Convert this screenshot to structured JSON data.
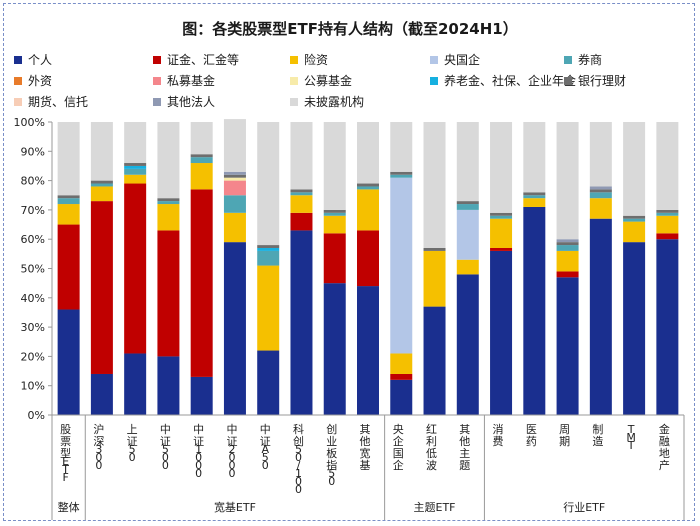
{
  "chart_data": {
    "type": "bar",
    "stacked": true,
    "title": "图：各类股票型ETF持有人结构（截至2024H1）",
    "ylim": [
      0,
      100
    ],
    "yticks": [
      "0%",
      "10%",
      "20%",
      "30%",
      "40%",
      "50%",
      "60%",
      "70%",
      "80%",
      "90%",
      "100%"
    ],
    "categories": [
      "股票型ETF",
      "沪深300",
      "上证50",
      "中证500",
      "中证1000",
      "中证2000",
      "中证A50",
      "科创50/100",
      "创业板指50",
      "其他宽基",
      "央企国企",
      "红利低波",
      "其他主题",
      "消费",
      "医药",
      "周期",
      "制造",
      "TMT",
      "金融地产"
    ],
    "groups": [
      {
        "name": "整体",
        "categories": [
          "股票型ETF"
        ]
      },
      {
        "name": "宽基ETF",
        "categories": [
          "沪深300",
          "上证50",
          "中证500",
          "中证1000",
          "中证2000",
          "中证A50",
          "科创50/100",
          "创业板指50",
          "其他宽基"
        ]
      },
      {
        "name": "主题ETF",
        "categories": [
          "央企国企",
          "红利低波",
          "其他主题"
        ]
      },
      {
        "name": "行业ETF",
        "categories": [
          "消费",
          "医药",
          "周期",
          "制造",
          "TMT",
          "金融地产"
        ]
      }
    ],
    "series": [
      {
        "name": "个人",
        "color": "#1a2f8f",
        "values": [
          36,
          14,
          21,
          20,
          13,
          59,
          22,
          63,
          45,
          44,
          12,
          37,
          48,
          56,
          71,
          47,
          67,
          59,
          60
        ]
      },
      {
        "name": "证金、汇金等",
        "color": "#c00000",
        "values": [
          29,
          59,
          58,
          43,
          64,
          0,
          0,
          6,
          17,
          19,
          2,
          0,
          0,
          1,
          0,
          2,
          0,
          0,
          2
        ]
      },
      {
        "name": "险资",
        "color": "#f5c000",
        "values": [
          7,
          5,
          3,
          9,
          9,
          10,
          29,
          6,
          6,
          14,
          7,
          19,
          5,
          10,
          3,
          7,
          7,
          7,
          6
        ]
      },
      {
        "name": "央国企",
        "color": "#b3c6e7",
        "values": [
          0,
          0,
          0,
          0,
          0,
          0,
          0,
          0,
          0,
          0,
          60,
          0,
          17,
          0,
          0,
          0,
          0,
          0,
          0
        ]
      },
      {
        "name": "券商",
        "color": "#4ea6b4",
        "values": [
          2,
          1,
          2,
          1,
          2,
          6,
          5,
          1,
          1,
          1,
          1,
          0,
          2,
          1,
          1,
          2,
          2,
          1,
          1
        ]
      },
      {
        "name": "外资",
        "color": "#e87b2a",
        "values": [
          0,
          0,
          0,
          0,
          0,
          0,
          0,
          0,
          0,
          0,
          0,
          0,
          0,
          0,
          0,
          0,
          0,
          0,
          0
        ]
      },
      {
        "name": "私募基金",
        "color": "#f4868c",
        "values": [
          0,
          0,
          0,
          0,
          0,
          5,
          0,
          0,
          0,
          0,
          0,
          0,
          0,
          0,
          0,
          0,
          0,
          0,
          0
        ]
      },
      {
        "name": "公募基金",
        "color": "#f7ebaa",
        "values": [
          0,
          0,
          0,
          0,
          0,
          1,
          0,
          0,
          0,
          0,
          0,
          0,
          0,
          0,
          0,
          0,
          0,
          0,
          0
        ]
      },
      {
        "name": "养老金、社保、企业年金",
        "color": "#16b0e0",
        "values": [
          0,
          0,
          1,
          0,
          0,
          0,
          1,
          0,
          0,
          0,
          0,
          0,
          0,
          0,
          0,
          0,
          0,
          0,
          0
        ]
      },
      {
        "name": "银行理财",
        "color": "#6e6e6e",
        "values": [
          1,
          1,
          1,
          1,
          1,
          1,
          1,
          1,
          1,
          1,
          1,
          1,
          1,
          1,
          1,
          1,
          1,
          1,
          1
        ]
      },
      {
        "name": "期货、信托",
        "color": "#f7cdb6",
        "values": [
          0,
          0,
          0,
          0,
          0,
          0,
          0,
          0,
          0,
          0,
          0,
          0,
          0,
          0,
          0,
          0,
          0,
          0,
          0
        ]
      },
      {
        "name": "其他法人",
        "color": "#8f99b3",
        "values": [
          0,
          0,
          0,
          0,
          0,
          1,
          0,
          0,
          0,
          0,
          0,
          0,
          0,
          0,
          0,
          1,
          1,
          0,
          0
        ]
      },
      {
        "name": "未披露机构",
        "color": "#d9d9d9",
        "values": [
          25,
          20,
          14,
          26,
          11,
          18,
          42,
          23,
          30,
          21,
          17,
          43,
          27,
          31,
          24,
          40,
          22,
          32,
          30
        ]
      }
    ]
  }
}
